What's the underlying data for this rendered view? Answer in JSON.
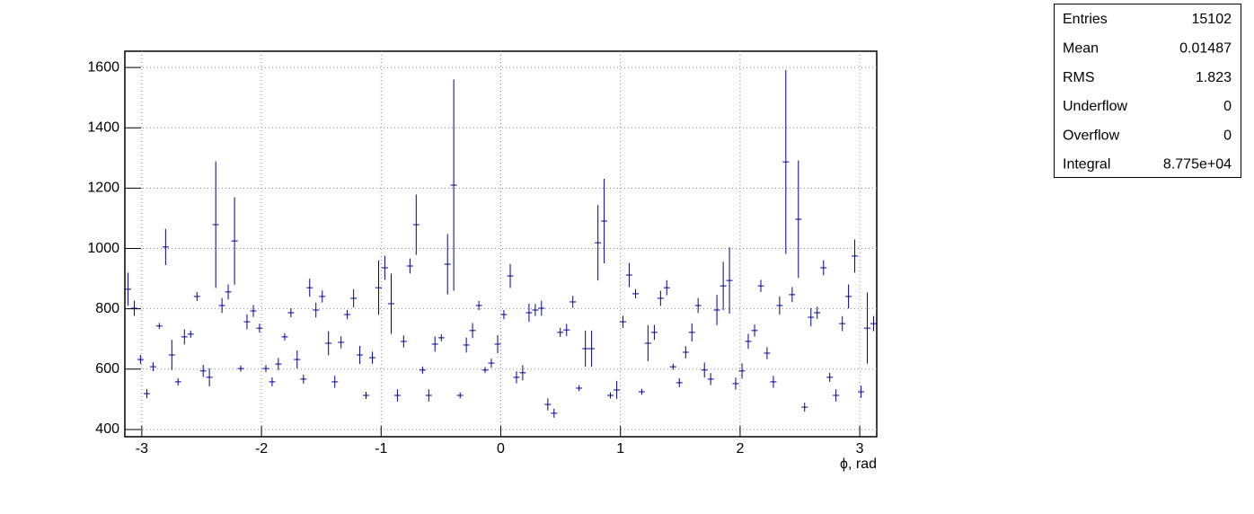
{
  "chart_data": {
    "type": "errorbar",
    "x_label": "ϕ, rad",
    "color": "#000099",
    "grid": true,
    "xlim": [
      -3.1416,
      3.1416
    ],
    "ylim": [
      376,
      1654
    ],
    "xticks": [
      -3,
      -2,
      -1,
      0,
      1,
      2,
      3
    ],
    "yticks": [
      400,
      600,
      800,
      1000,
      1200,
      1400,
      1600
    ],
    "bin_width": 0.05236,
    "x": [
      -3.115,
      -3.063,
      -3.011,
      -2.958,
      -2.906,
      -2.854,
      -2.801,
      -2.749,
      -2.697,
      -2.644,
      -2.592,
      -2.539,
      -2.487,
      -2.435,
      -2.382,
      -2.33,
      -2.278,
      -2.225,
      -2.173,
      -2.121,
      -2.068,
      -2.016,
      -1.963,
      -1.911,
      -1.859,
      -1.806,
      -1.754,
      -1.702,
      -1.649,
      -1.597,
      -1.545,
      -1.492,
      -1.44,
      -1.387,
      -1.335,
      -1.283,
      -1.23,
      -1.178,
      -1.126,
      -1.073,
      -1.021,
      -0.969,
      -0.916,
      -0.864,
      -0.812,
      -0.759,
      -0.707,
      -0.654,
      -0.602,
      -0.55,
      -0.497,
      -0.445,
      -0.393,
      -0.34,
      -0.288,
      -0.236,
      -0.183,
      -0.131,
      -0.079,
      -0.026,
      0.026,
      0.079,
      0.131,
      0.183,
      0.236,
      0.288,
      0.34,
      0.393,
      0.445,
      0.497,
      0.55,
      0.602,
      0.654,
      0.707,
      0.759,
      0.812,
      0.864,
      0.916,
      0.969,
      1.021,
      1.073,
      1.126,
      1.178,
      1.23,
      1.283,
      1.335,
      1.387,
      1.44,
      1.492,
      1.545,
      1.597,
      1.649,
      1.702,
      1.754,
      1.806,
      1.859,
      1.911,
      1.963,
      2.016,
      2.068,
      2.121,
      2.173,
      2.225,
      2.278,
      2.33,
      2.382,
      2.435,
      2.487,
      2.539,
      2.592,
      2.644,
      2.697,
      2.749,
      2.801,
      2.854,
      2.906,
      2.958,
      3.011,
      3.063,
      3.115
    ],
    "values": [
      865,
      802,
      632,
      519,
      608,
      743,
      1005,
      647,
      558,
      707,
      716,
      841,
      594,
      573,
      1079,
      811,
      856,
      1025,
      602,
      757,
      793,
      736,
      602,
      558,
      617,
      707,
      787,
      632,
      567,
      870,
      796,
      841,
      686,
      558,
      689,
      781,
      835,
      647,
      513,
      638,
      870,
      936,
      817,
      513,
      692,
      942,
      1079,
      597,
      513,
      683,
      704,
      948,
      1210,
      513,
      680,
      728,
      811,
      597,
      620,
      683,
      781,
      909,
      573,
      588,
      787,
      796,
      802,
      483,
      454,
      722,
      730,
      823,
      537,
      668,
      668,
      1019,
      1091,
      513,
      531,
      757,
      912,
      850,
      525,
      686,
      722,
      835,
      870,
      608,
      555,
      656,
      722,
      811,
      597,
      567,
      796,
      876,
      894,
      552,
      594,
      692,
      728,
      876,
      653,
      558,
      811,
      1287,
      847,
      1097,
      474,
      772,
      787,
      936,
      573,
      513,
      751,
      841,
      975,
      525,
      736,
      751
    ],
    "errors": [
      55,
      25,
      15,
      15,
      15,
      10,
      60,
      50,
      12,
      25,
      12,
      15,
      20,
      30,
      210,
      25,
      25,
      145,
      10,
      25,
      20,
      15,
      12,
      15,
      20,
      12,
      15,
      30,
      15,
      30,
      25,
      20,
      40,
      20,
      20,
      15,
      30,
      30,
      12,
      20,
      90,
      40,
      100,
      20,
      20,
      25,
      100,
      12,
      20,
      25,
      12,
      100,
      350,
      10,
      25,
      25,
      15,
      10,
      15,
      30,
      15,
      40,
      20,
      25,
      30,
      20,
      25,
      20,
      15,
      15,
      20,
      20,
      10,
      60,
      60,
      125,
      140,
      10,
      30,
      20,
      40,
      15,
      10,
      60,
      25,
      25,
      25,
      10,
      15,
      20,
      30,
      25,
      25,
      20,
      50,
      80,
      110,
      20,
      25,
      25,
      20,
      20,
      20,
      20,
      30,
      305,
      25,
      195,
      15,
      30,
      20,
      25,
      15,
      20,
      25,
      40,
      55,
      20,
      118,
      25
    ],
    "stats": [
      [
        "Entries",
        "15102"
      ],
      [
        "Mean",
        "0.01487"
      ],
      [
        "RMS",
        "1.823"
      ],
      [
        "Underflow",
        "0"
      ],
      [
        "Overflow",
        "0"
      ],
      [
        "Integral",
        "8.775e+04"
      ]
    ]
  }
}
